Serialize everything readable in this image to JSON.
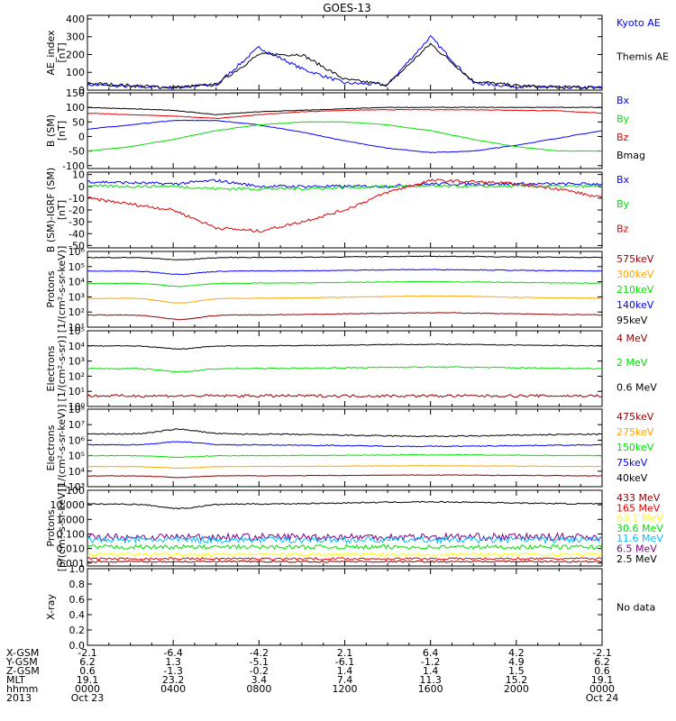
{
  "title": "GOES-13",
  "colors": {
    "black": "#000000",
    "blue": "#0000ff",
    "red": "#e00000",
    "green": "#00e000",
    "orange": "#ffa500",
    "darkred": "#900000",
    "cyan": "#00c0ff",
    "yellow": "#ffff00",
    "purple": "#800080",
    "lightgreen": "#00e000"
  },
  "panels": [
    {
      "id": "ae",
      "ylabel": [
        "AE_index",
        "[nT]"
      ],
      "yscale": "linear",
      "ylim": [
        0,
        420
      ],
      "ticks": [
        "400",
        "300",
        "200",
        "100",
        "0"
      ],
      "tickvals": [
        400,
        300,
        200,
        100,
        0
      ],
      "legend": [
        {
          "text": "Kyoto AE",
          "color": "blue"
        },
        {
          "text": "Themis AE",
          "color": "black"
        }
      ]
    },
    {
      "id": "bsm",
      "ylabel": [
        "B (SM)",
        "[nT]"
      ],
      "yscale": "linear",
      "ylim": [
        -110,
        150
      ],
      "ticks": [
        "150",
        "100",
        "50",
        "0",
        "-50",
        "-100"
      ],
      "tickvals": [
        150,
        100,
        50,
        0,
        -50,
        -100
      ],
      "legend": [
        {
          "text": "Bx",
          "color": "blue"
        },
        {
          "text": "By",
          "color": "green"
        },
        {
          "text": "Bz",
          "color": "red"
        },
        {
          "text": "Bmag",
          "color": "black"
        }
      ]
    },
    {
      "id": "bigrf",
      "ylabel": [
        "B (SM)-IGRF (SM)",
        "[nT]"
      ],
      "yscale": "linear",
      "ylim": [
        -52,
        12
      ],
      "ticks": [
        "10",
        "0",
        "-10",
        "-20",
        "-30",
        "-40",
        "-50"
      ],
      "tickvals": [
        10,
        0,
        -10,
        -20,
        -30,
        -40,
        -50
      ],
      "legend": [
        {
          "text": "Bx",
          "color": "blue"
        },
        {
          "text": "By",
          "color": "green"
        },
        {
          "text": "Bz",
          "color": "red"
        }
      ]
    },
    {
      "id": "protons1",
      "ylabel": [
        "Protons",
        "[1/(cm²-s-sr-keV)]"
      ],
      "yscale": "log",
      "ylim": [
        1,
        6
      ],
      "ticks": [
        "10⁶",
        "10⁵",
        "10⁴",
        "10³",
        "10²",
        "10¹"
      ],
      "tickvals": [
        6,
        5,
        4,
        3,
        2,
        1
      ],
      "legend": [
        {
          "text": "575keV",
          "color": "darkred"
        },
        {
          "text": "300keV",
          "color": "orange"
        },
        {
          "text": "210keV",
          "color": "green"
        },
        {
          "text": "140keV",
          "color": "blue"
        },
        {
          "text": "95keV",
          "color": "black"
        }
      ]
    },
    {
      "id": "electrons1",
      "ylabel": [
        "Electrons",
        "[1/(cm²-s-sr)]"
      ],
      "yscale": "log",
      "ylim": [
        0,
        5
      ],
      "ticks": [
        "10⁵",
        "10⁴",
        "10³",
        "10²",
        "10¹",
        "10⁰"
      ],
      "tickvals": [
        5,
        4,
        3,
        2,
        1,
        0
      ],
      "legend": [
        {
          "text": "4 MeV",
          "color": "darkred"
        },
        {
          "text": "2 MeV",
          "color": "green"
        },
        {
          "text": "0.6 MeV",
          "color": "black"
        }
      ]
    },
    {
      "id": "electrons2",
      "ylabel": [
        "Electrons",
        "[1/(cm²-s-sr-keV)]"
      ],
      "yscale": "log",
      "ylim": [
        3,
        8
      ],
      "ticks": [
        "10⁸",
        "10⁷",
        "10⁶",
        "10⁵",
        "10⁴",
        "10³"
      ],
      "tickvals": [
        8,
        7,
        6,
        5,
        4,
        3
      ],
      "legend": [
        {
          "text": "475keV",
          "color": "darkred"
        },
        {
          "text": "275keV",
          "color": "orange"
        },
        {
          "text": "150keV",
          "color": "green"
        },
        {
          "text": "75keV",
          "color": "blue"
        },
        {
          "text": "40keV",
          "color": "black"
        }
      ]
    },
    {
      "id": "protons2",
      "ylabel": [
        "Protons",
        "[p/(cm²-s-sr-keV)]"
      ],
      "yscale": "log",
      "ylim": [
        -3.2,
        2
      ],
      "ticks": [
        "100",
        "10.000",
        "1.000",
        "0.100",
        "0.010",
        "0.001"
      ],
      "tickvals": [
        2,
        1,
        0,
        -1,
        -2,
        -3
      ],
      "legend": [
        {
          "text": "433 MeV",
          "color": "darkred"
        },
        {
          "text": "165 MeV",
          "color": "red"
        },
        {
          "text": "63.1 MeV",
          "color": "yellow"
        },
        {
          "text": "30.6 MeV",
          "color": "lightgreen"
        },
        {
          "text": "11.6 MeV",
          "color": "cyan"
        },
        {
          "text": "6.5 MeV",
          "color": "purple"
        },
        {
          "text": "2.5 MeV",
          "color": "black"
        }
      ]
    },
    {
      "id": "xray",
      "ylabel": [
        "X-ray",
        ""
      ],
      "yscale": "linear",
      "ylim": [
        0,
        1
      ],
      "ticks": [
        "1.0",
        "0.8",
        "0.6",
        "0.4",
        "0.2",
        "0.0"
      ],
      "tickvals": [
        1.0,
        0.8,
        0.6,
        0.4,
        0.2,
        0.0
      ],
      "legend": [
        {
          "text": "No data",
          "color": "black"
        }
      ]
    }
  ],
  "xaxis": {
    "labels": [
      "X-GSM",
      "Y-GSM",
      "Z-GSM",
      "MLT",
      "hhmm",
      "2013"
    ],
    "columns": [
      [
        "-2.1",
        "6.2",
        "0.6",
        "19.1",
        "0000",
        "Oct 23"
      ],
      [
        "-6.4",
        "1.3",
        "-1.3",
        "23.2",
        "0400",
        ""
      ],
      [
        "-4.2",
        "-5.1",
        "-0.2",
        "3.4",
        "0800",
        ""
      ],
      [
        "2.1",
        "-6.1",
        "1.4",
        "7.4",
        "1200",
        ""
      ],
      [
        "6.4",
        "-1.2",
        "1.4",
        "11.3",
        "1600",
        ""
      ],
      [
        "4.2",
        "4.9",
        "1.5",
        "15.2",
        "2000",
        ""
      ],
      [
        "-2.1",
        "6.2",
        "0.6",
        "19.1",
        "0000",
        "Oct 24"
      ]
    ]
  },
  "chart_data": {
    "type": "line",
    "title": "GOES-13",
    "x": [
      0,
      2,
      4,
      6,
      8,
      10,
      12,
      14,
      16,
      18,
      20,
      22,
      24
    ],
    "xlabel": "hhmm",
    "panels": [
      {
        "name": "AE",
        "series": [
          {
            "name": "Kyoto AE",
            "values": [
              30,
              20,
              15,
              30,
              240,
              120,
              40,
              30,
              300,
              40,
              20,
              15,
              15
            ]
          },
          {
            "name": "Themis AE",
            "values": [
              40,
              25,
              15,
              30,
              200,
              200,
              60,
              30,
              260,
              50,
              25,
              15,
              15
            ]
          }
        ]
      },
      {
        "name": "B (SM)",
        "series": [
          {
            "name": "Bx",
            "values": [
              25,
              40,
              55,
              55,
              40,
              15,
              -15,
              -40,
              -55,
              -50,
              -30,
              -5,
              20
            ]
          },
          {
            "name": "By",
            "values": [
              -50,
              -35,
              -10,
              20,
              40,
              50,
              50,
              40,
              20,
              -10,
              -35,
              -50,
              -50
            ]
          },
          {
            "name": "Bz",
            "values": [
              80,
              75,
              70,
              62,
              75,
              85,
              90,
              92,
              92,
              92,
              90,
              88,
              80
            ]
          },
          {
            "name": "Bmag",
            "values": [
              100,
              95,
              90,
              75,
              85,
              90,
              95,
              100,
              100,
              100,
              100,
              100,
              100
            ]
          }
        ]
      },
      {
        "name": "B (SM)-IGRF (SM)",
        "series": [
          {
            "name": "Bx",
            "values": [
              4,
              3,
              2,
              5,
              0,
              0,
              0,
              0,
              2,
              2,
              2,
              2,
              2
            ]
          },
          {
            "name": "By",
            "values": [
              0,
              0,
              0,
              -2,
              -2,
              -2,
              -1,
              0,
              0,
              0,
              0,
              0,
              0
            ]
          },
          {
            "name": "Bz",
            "values": [
              -10,
              -15,
              -20,
              -35,
              -38,
              -30,
              -20,
              -5,
              5,
              4,
              2,
              -2,
              -10
            ]
          }
        ]
      }
    ]
  }
}
